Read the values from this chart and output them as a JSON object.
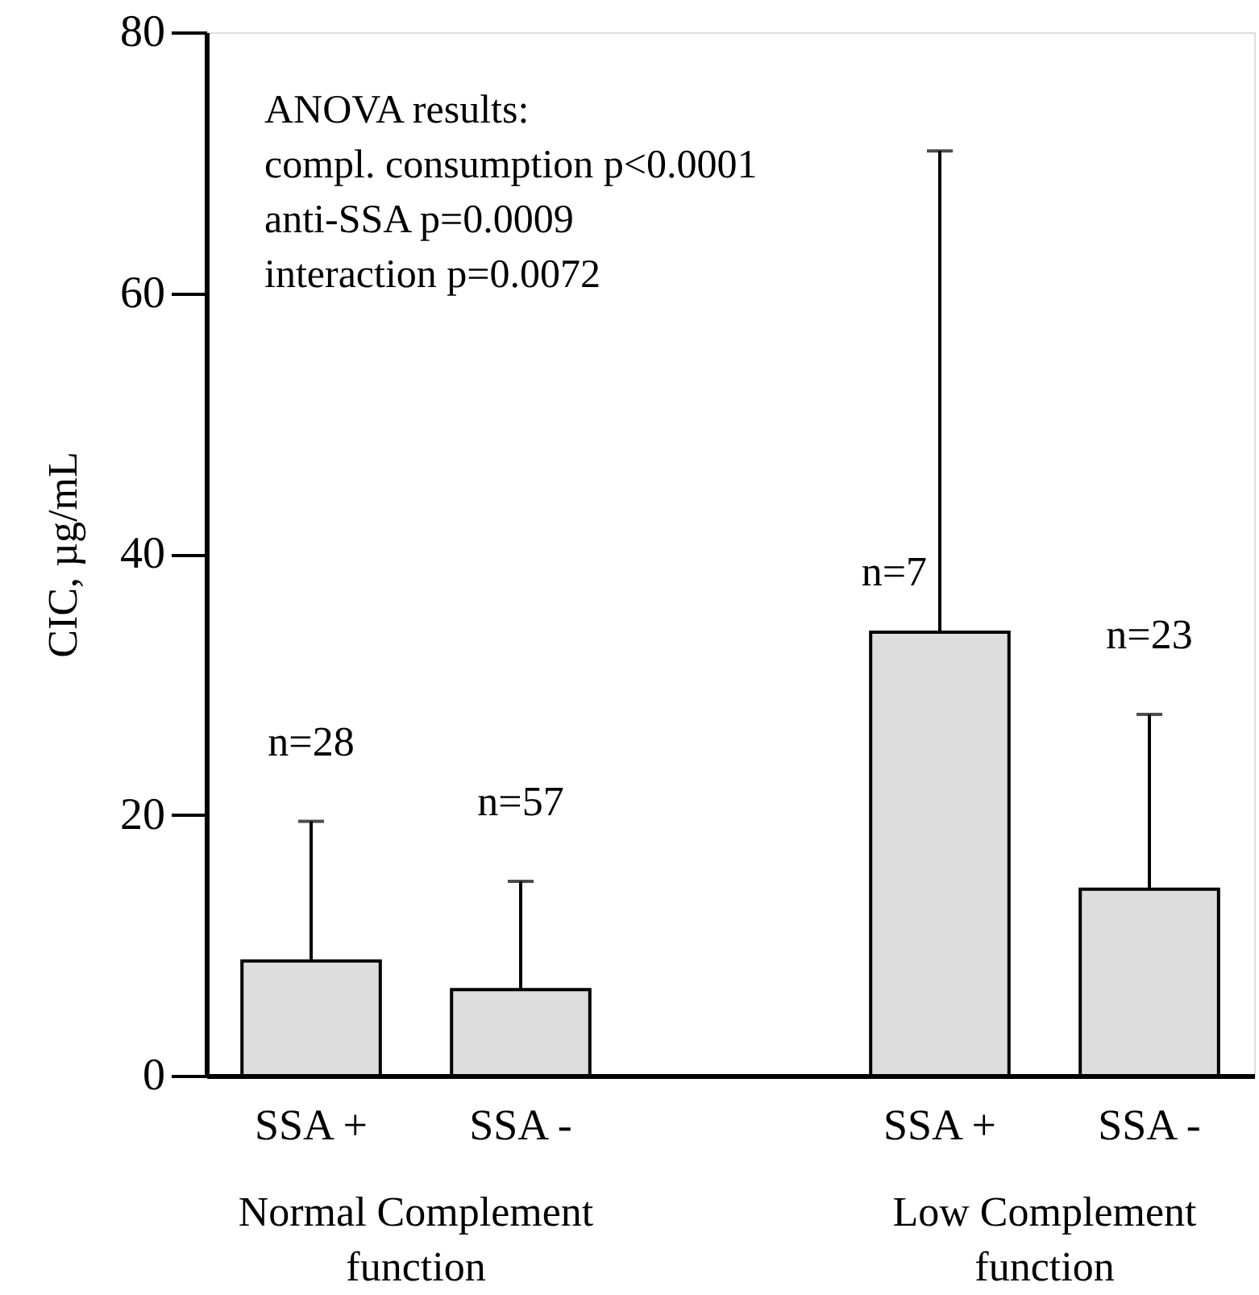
{
  "chart_data": {
    "type": "bar",
    "ylabel": "CIC, µg/mL",
    "categories": [
      "SSA +",
      "SSA -",
      null,
      "SSA +",
      "SSA -"
    ],
    "values": [
      8.8,
      6.6,
      null,
      34.0,
      14.3
    ],
    "errors": [
      [
        8.8,
        19.5
      ],
      [
        6.6,
        14.9
      ],
      null,
      [
        34.0,
        70.9
      ],
      [
        14.3,
        27.7
      ]
    ],
    "color": "#dddddd",
    "ylim": [
      0,
      80
    ],
    "yticks": [
      0,
      20,
      40,
      60,
      80
    ],
    "grid": false,
    "annotations": [
      "ANOVA results:\ncompl. consumption p<0.0001\nanti-SSA p=0.0009\ninteraction p=0.0072",
      "Normal Complement\nfunction",
      "Low Complement\nfunction",
      "n=28",
      "n=57",
      "n=7",
      "n=23"
    ]
  }
}
